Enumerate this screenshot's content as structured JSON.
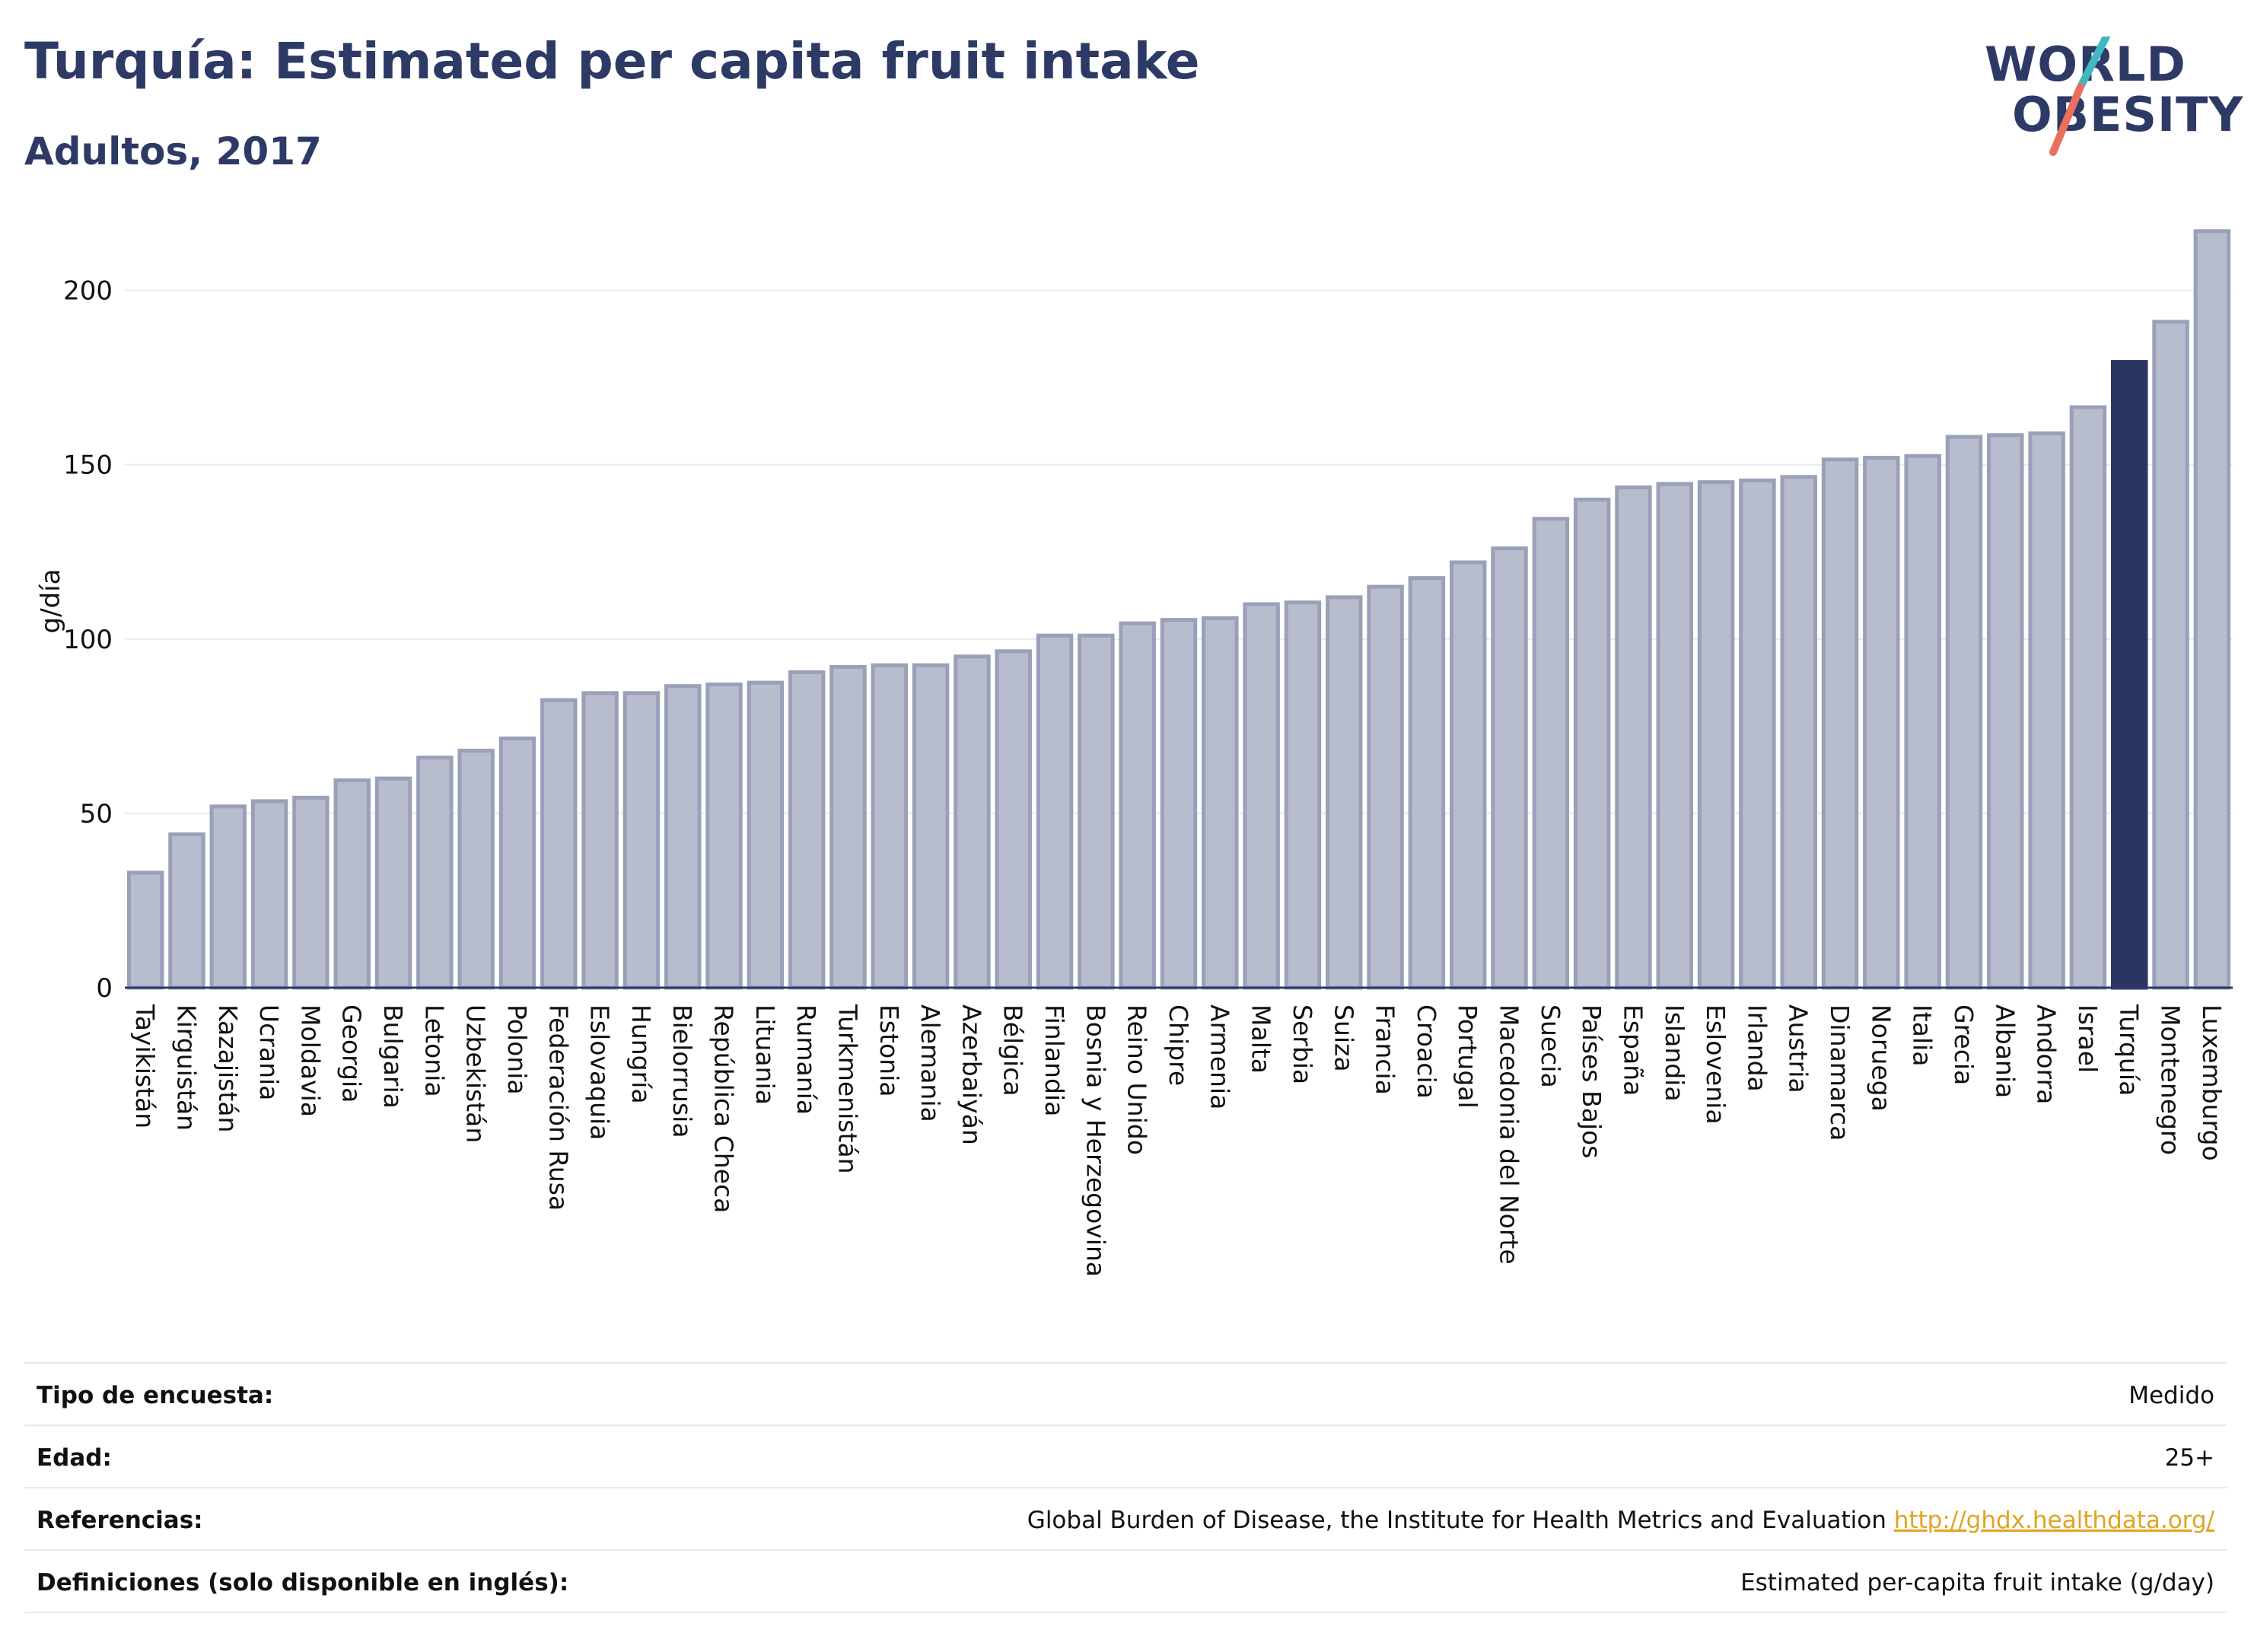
{
  "header": {
    "title": "Turquía: Estimated per capita fruit intake",
    "subtitle": "Adultos, 2017"
  },
  "logo": {
    "line1": "WORLD",
    "line2": "OBESITY",
    "slash_colors": [
      "#40b8c0",
      "#e8705e"
    ]
  },
  "colors": {
    "bar": "#b8bdcd",
    "bar_border": "#9aa0b8",
    "highlight": "#2b3561",
    "axis": "#2e3a66",
    "grid": "#e8e9ee"
  },
  "chart_data": {
    "type": "bar",
    "title": "Turquía: Estimated per capita fruit intake",
    "subtitle": "Adultos, 2017",
    "xlabel": "",
    "ylabel": "g/día",
    "ylim": [
      0,
      220
    ],
    "yticks": [
      0,
      50,
      100,
      150,
      200
    ],
    "grid": true,
    "highlight": "Turquía",
    "categories": [
      "Tayikistán",
      "Kirguistán",
      "Kazajistán",
      "Ucrania",
      "Moldavia",
      "Georgia",
      "Bulgaria",
      "Letonia",
      "Uzbekistán",
      "Polonia",
      "Federación Rusa",
      "Eslovaquia",
      "Hungría",
      "Bielorrusia",
      "República Checa",
      "Lituania",
      "Rumanía",
      "Turkmenistán",
      "Estonia",
      "Alemania",
      "Azerbaiyán",
      "Bélgica",
      "Finlandia",
      "Bosnia y Herzegovina",
      "Reino Unido",
      "Chipre",
      "Armenia",
      "Malta",
      "Serbia",
      "Suiza",
      "Francia",
      "Croacia",
      "Portugal",
      "Macedonia del Norte",
      "Suecia",
      "Países Bajos",
      "España",
      "Islandia",
      "Eslovenia",
      "Irlanda",
      "Austria",
      "Dinamarca",
      "Noruega",
      "Italia",
      "Grecia",
      "Albania",
      "Andorra",
      "Israel",
      "Turquía",
      "Montenegro",
      "Luxemburgo"
    ],
    "values": [
      33,
      44,
      52,
      53.5,
      54.5,
      59.5,
      60,
      66,
      68,
      71.5,
      82.5,
      84.5,
      84.5,
      86.5,
      87,
      87.5,
      90.5,
      92,
      92.5,
      92.5,
      95,
      96.5,
      101,
      101,
      104.5,
      105.5,
      106,
      110,
      110.5,
      112,
      115,
      117.5,
      122,
      126,
      134.5,
      140,
      143.5,
      144.5,
      145,
      145.5,
      146.5,
      151.5,
      152,
      152.5,
      158,
      158.5,
      159,
      166.5,
      179.5,
      191,
      217
    ]
  },
  "meta": {
    "rows": [
      {
        "label": "Tipo de encuesta:",
        "value": "Medido"
      },
      {
        "label": "Edad:",
        "value": "25+"
      },
      {
        "label": "Referencias:",
        "value": "Global Burden of Disease, the Institute for Health Metrics and Evaluation",
        "link": "http://ghdx.healthdata.org/"
      },
      {
        "label": "Definiciones (solo disponible en inglés):",
        "value": "Estimated per-capita fruit intake (g/day)"
      }
    ]
  }
}
